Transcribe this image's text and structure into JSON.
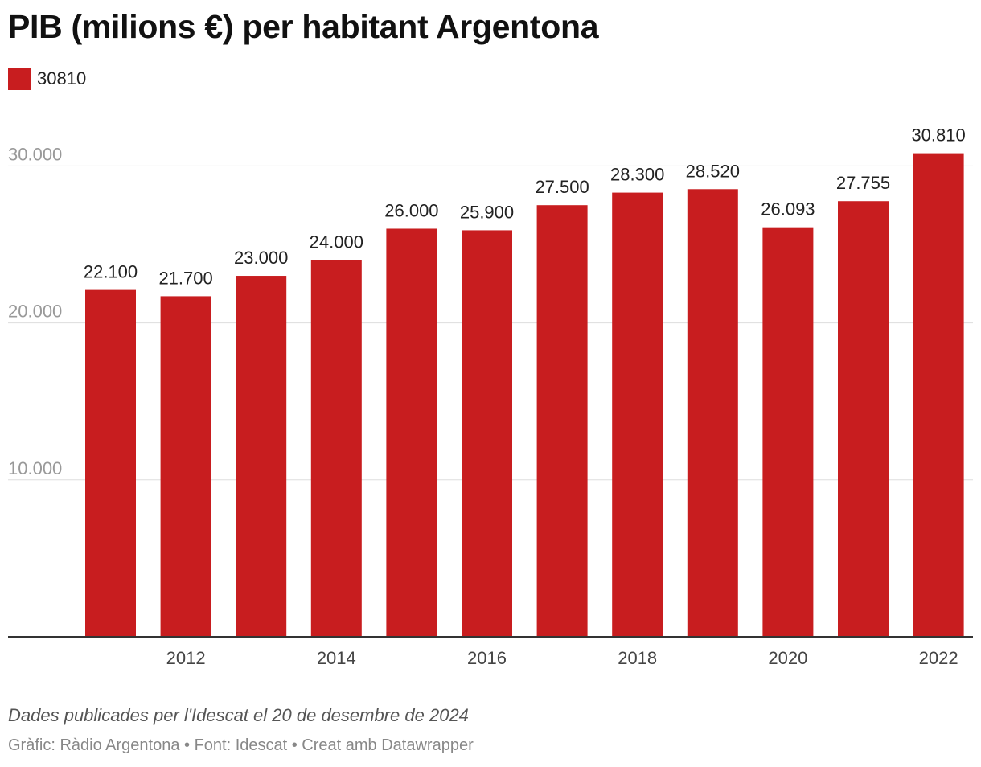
{
  "header": {
    "title": "PIB (milions €) per habitant Argentona"
  },
  "legend": {
    "label": "30810",
    "color": "#c81d1f"
  },
  "chart_data": {
    "type": "bar",
    "title": "PIB (milions €) per habitant Argentona",
    "categories": [
      "2011",
      "2012",
      "2013",
      "2014",
      "2015",
      "2016",
      "2017",
      "2018",
      "2019",
      "2020",
      "2021",
      "2022"
    ],
    "x_tick_labels": [
      "2012",
      "2014",
      "2016",
      "2018",
      "2020",
      "2022"
    ],
    "series": [
      {
        "name": "30810",
        "values": [
          22100,
          21700,
          23000,
          24000,
          26000,
          25900,
          27500,
          28300,
          28520,
          26093,
          27755,
          30810
        ],
        "value_labels": [
          "22.100",
          "21.700",
          "23.000",
          "24.000",
          "26.000",
          "25.900",
          "27.500",
          "28.300",
          "28.520",
          "26.093",
          "27.755",
          "30.810"
        ],
        "color": "#c81d1f"
      }
    ],
    "y_ticks": [
      10000,
      20000,
      30000
    ],
    "y_tick_labels": [
      "10.000",
      "20.000",
      "30.000"
    ],
    "ylim": [
      0,
      32000
    ],
    "grid": true,
    "legend_position": "top-left",
    "xlabel": "",
    "ylabel": ""
  },
  "footer": {
    "note": "Dades publicades per l'Idescat el 20 de desembre de 2024",
    "credit": "Gràfic: Ràdio Argentona • Font: Idescat • Creat amb Datawrapper"
  }
}
